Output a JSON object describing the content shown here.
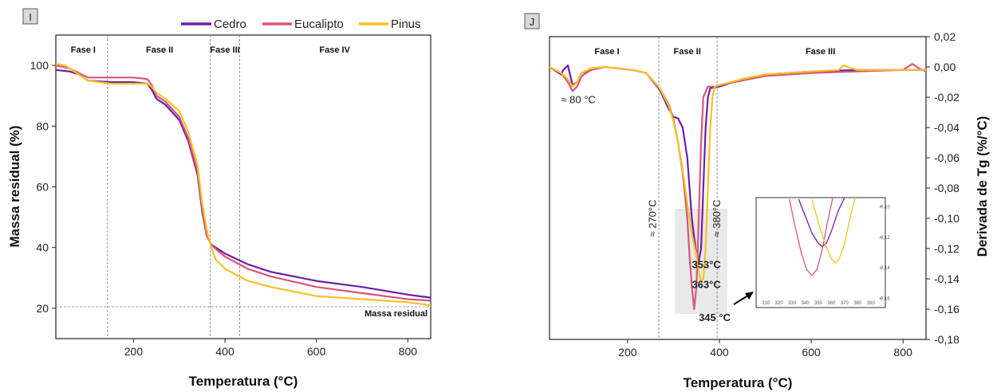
{
  "colors": {
    "cedro": "#6a1fa8",
    "eucalipto": "#d9557a",
    "pinus": "#f5c125"
  },
  "chart_data": [
    {
      "panel": "I",
      "type": "line",
      "xlabel": "Temperatura (°C)",
      "ylabel": "Massa residual (%)",
      "xlim": [
        30,
        850
      ],
      "ylim": [
        10,
        110
      ],
      "xticks": [
        200,
        400,
        600,
        800
      ],
      "yticks": [
        20,
        40,
        60,
        80,
        100
      ],
      "legend": "top",
      "phases": [
        {
          "label": "Fase I",
          "x": 90
        },
        {
          "label": "Fase II",
          "x": 257
        },
        {
          "label": "Fase III",
          "x": 400
        },
        {
          "label": "Fase IV",
          "x": 640
        }
      ],
      "phase_bounds": [
        143,
        368,
        432
      ],
      "hline": {
        "y": 20.5,
        "label": "Massa residual"
      },
      "series": [
        {
          "name": "Cedro",
          "color_key": "cedro",
          "x": [
            30,
            60,
            80,
            100,
            150,
            200,
            230,
            240,
            250,
            270,
            300,
            320,
            340,
            350,
            360,
            370,
            380,
            400,
            450,
            500,
            600,
            700,
            800,
            850
          ],
          "y": [
            98.5,
            98,
            97,
            95,
            94.5,
            94.5,
            94,
            92,
            89,
            87,
            82,
            75,
            64,
            52,
            44,
            41,
            40,
            38,
            34.5,
            32,
            29,
            27,
            24.5,
            23.5
          ]
        },
        {
          "name": "Eucalipto",
          "color_key": "eucalipto",
          "x": [
            30,
            60,
            80,
            100,
            150,
            200,
            230,
            240,
            250,
            270,
            300,
            320,
            340,
            350,
            360,
            370,
            380,
            400,
            450,
            500,
            600,
            700,
            800,
            850
          ],
          "y": [
            100,
            99,
            97.5,
            96,
            96,
            96,
            95.5,
            93.5,
            90,
            88,
            83,
            76,
            65,
            53,
            44,
            41,
            39.5,
            37,
            33,
            30.5,
            27,
            25,
            23,
            22.5
          ]
        },
        {
          "name": "Pinus",
          "color_key": "pinus",
          "x": [
            30,
            50,
            80,
            100,
            150,
            200,
            230,
            240,
            250,
            270,
            300,
            320,
            340,
            350,
            360,
            370,
            380,
            400,
            450,
            500,
            600,
            700,
            800,
            850
          ],
          "y": [
            100.5,
            100,
            97,
            95,
            94,
            94,
            94,
            93,
            91,
            89,
            85,
            78,
            67,
            55,
            46,
            40,
            36,
            33,
            29,
            27,
            24,
            23,
            22,
            21
          ]
        }
      ]
    },
    {
      "panel": "J",
      "type": "line",
      "xlabel": "Temperatura (°C)",
      "ylabel": "Derivada de Tg (%/°C)",
      "xlim": [
        30,
        850
      ],
      "ylim": [
        -0.18,
        0.02
      ],
      "xticks": [
        200,
        400,
        600,
        800
      ],
      "yticks": [
        0.02,
        0.0,
        -0.02,
        -0.04,
        -0.06,
        -0.08,
        -0.1,
        -0.12,
        -0.14,
        -0.16,
        -0.18
      ],
      "ytick_labels": [
        "0,02",
        "0,00",
        "-0,02",
        "-0,04",
        "-0,06",
        "-0,08",
        "-0,10",
        "-0,12",
        "-0,14",
        "-0,16",
        "-0,18"
      ],
      "phases": [
        {
          "label": "Fase I",
          "x": 155
        },
        {
          "label": "Fase II",
          "x": 330
        },
        {
          "label": "Fase III",
          "x": 620
        }
      ],
      "phase_bounds": [
        268,
        395
      ],
      "annotations": [
        {
          "text": "≈ 80 °C",
          "x": 55,
          "y": -0.024
        },
        {
          "text": "≈ 270°C",
          "x": 262,
          "y": -0.1,
          "rotate": true
        },
        {
          "text": "≈ 380°C",
          "x": 402,
          "y": -0.1,
          "rotate": true
        },
        {
          "text": "353°C",
          "x": 340,
          "y": -0.133,
          "color_key": "cedro"
        },
        {
          "text": "363°C",
          "x": 340,
          "y": -0.146,
          "color_key": "pinus"
        },
        {
          "text": "345 °C",
          "x": 355,
          "y": -0.168,
          "color_key": "eucalipto"
        }
      ],
      "series": [
        {
          "name": "Cedro",
          "color_key": "cedro",
          "x": [
            30,
            55,
            60,
            70,
            80,
            90,
            100,
            120,
            150,
            180,
            210,
            240,
            270,
            290,
            300,
            310,
            320,
            330,
            340,
            350,
            355,
            360,
            365,
            370,
            375,
            380,
            400,
            450,
            500,
            600,
            700,
            800,
            850
          ],
          "y": [
            0.0,
            -0.005,
            -0.002,
            0.001,
            -0.012,
            -0.01,
            -0.004,
            -0.002,
            0.0,
            -0.001,
            -0.002,
            -0.004,
            -0.015,
            -0.028,
            -0.033,
            -0.034,
            -0.04,
            -0.06,
            -0.1,
            -0.125,
            -0.128,
            -0.12,
            -0.08,
            -0.04,
            -0.02,
            -0.014,
            -0.013,
            -0.008,
            -0.005,
            -0.003,
            -0.002,
            -0.002,
            -0.002
          ]
        },
        {
          "name": "Eucalipto",
          "color_key": "eucalipto",
          "x": [
            30,
            55,
            70,
            80,
            90,
            100,
            120,
            150,
            180,
            210,
            240,
            270,
            290,
            300,
            310,
            320,
            330,
            335,
            340,
            345,
            350,
            355,
            360,
            365,
            375,
            390,
            400,
            450,
            500,
            600,
            700,
            800,
            820,
            835,
            850
          ],
          "y": [
            0.0,
            -0.004,
            -0.01,
            -0.016,
            -0.013,
            -0.006,
            -0.002,
            0.0,
            -0.001,
            -0.002,
            -0.004,
            -0.014,
            -0.025,
            -0.035,
            -0.05,
            -0.07,
            -0.1,
            -0.125,
            -0.145,
            -0.16,
            -0.145,
            -0.1,
            -0.05,
            -0.02,
            -0.013,
            -0.013,
            -0.012,
            -0.009,
            -0.006,
            -0.004,
            -0.003,
            -0.002,
            0.002,
            -0.001,
            -0.003
          ]
        },
        {
          "name": "Pinus",
          "color_key": "pinus",
          "x": [
            30,
            55,
            70,
            80,
            90,
            100,
            120,
            150,
            180,
            210,
            240,
            270,
            290,
            300,
            310,
            320,
            330,
            340,
            350,
            355,
            360,
            365,
            370,
            375,
            380,
            385,
            390,
            400,
            450,
            500,
            600,
            660,
            670,
            700,
            800,
            850
          ],
          "y": [
            0.0,
            -0.004,
            -0.008,
            -0.013,
            -0.01,
            -0.004,
            -0.001,
            0.0,
            -0.001,
            -0.002,
            -0.004,
            -0.014,
            -0.026,
            -0.036,
            -0.05,
            -0.068,
            -0.09,
            -0.11,
            -0.125,
            -0.135,
            -0.142,
            -0.14,
            -0.12,
            -0.08,
            -0.04,
            -0.02,
            -0.013,
            -0.012,
            -0.008,
            -0.005,
            -0.003,
            -0.002,
            0.001,
            -0.002,
            -0.002,
            -0.002
          ]
        }
      ],
      "inset": {
        "xlim": [
          305,
          395
        ],
        "ylim": [
          -0.165,
          -0.095
        ],
        "xticks": [
          310,
          320,
          330,
          340,
          350,
          360,
          370,
          380,
          390
        ],
        "yticks": [
          -0.1,
          -0.12,
          -0.14,
          -0.16
        ],
        "ytick_labels": [
          "-0,10",
          "-0,12",
          "-0,14",
          "-0,16"
        ],
        "series": [
          {
            "name": "Cedro",
            "color_key": "cedro",
            "x": [
              335,
              340,
              345,
              350,
              353,
              356,
              360,
              365,
              370
            ],
            "y": [
              -0.095,
              -0.106,
              -0.117,
              -0.124,
              -0.126,
              -0.124,
              -0.116,
              -0.103,
              -0.09
            ]
          },
          {
            "name": "Eucalipto",
            "color_key": "eucalipto",
            "x": [
              328,
              332,
              337,
              341,
              345,
              349,
              353,
              357,
              361
            ],
            "y": [
              -0.095,
              -0.112,
              -0.13,
              -0.141,
              -0.145,
              -0.141,
              -0.128,
              -0.11,
              -0.09
            ]
          },
          {
            "name": "Pinus",
            "color_key": "pinus",
            "x": [
              345,
              350,
              355,
              360,
              363,
              366,
              370,
              374,
              378
            ],
            "y": [
              -0.095,
              -0.11,
              -0.124,
              -0.134,
              -0.137,
              -0.134,
              -0.124,
              -0.108,
              -0.09
            ]
          }
        ]
      }
    }
  ]
}
